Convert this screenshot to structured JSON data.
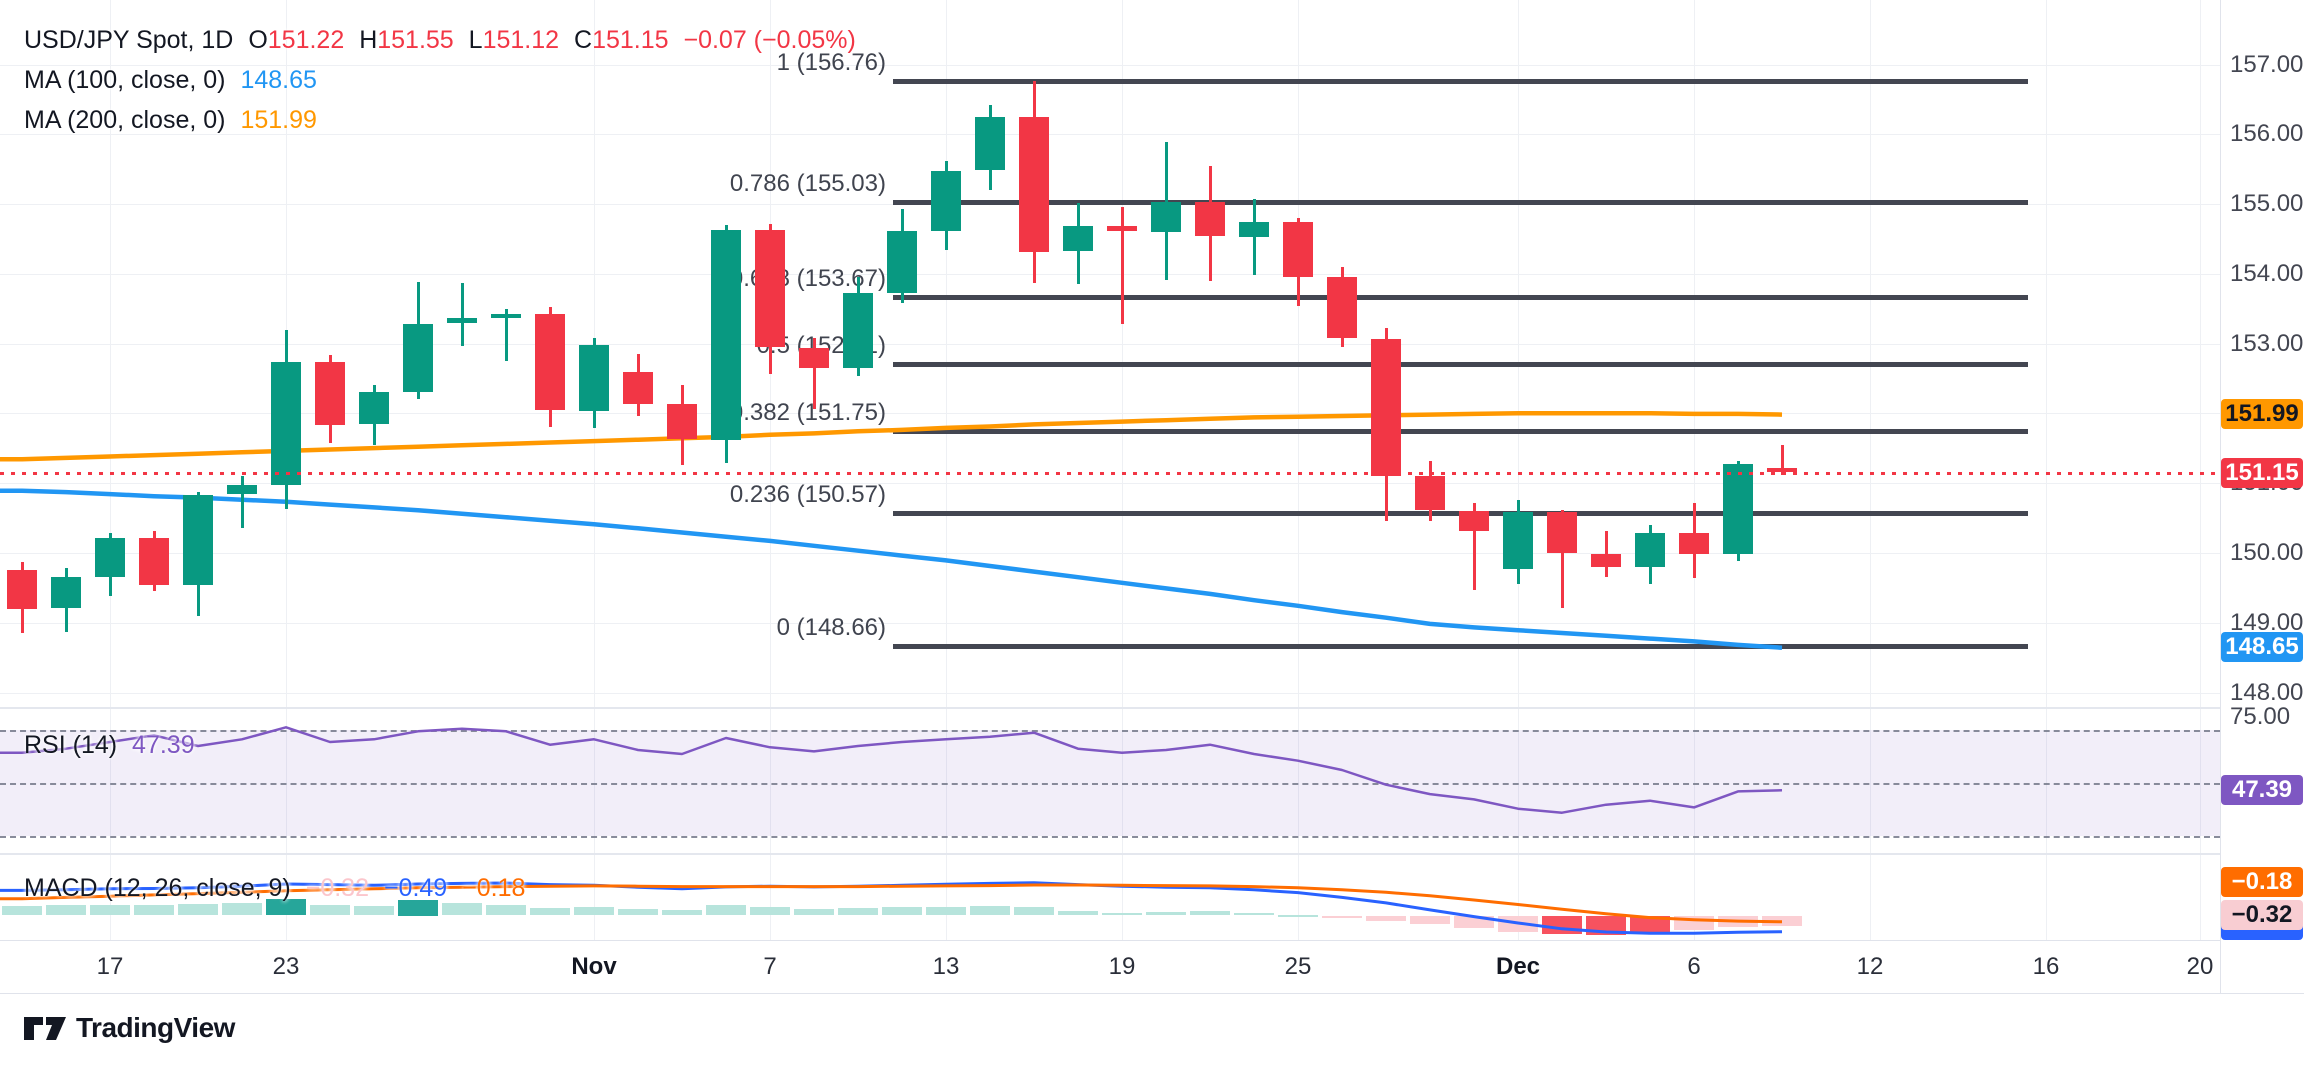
{
  "header": {
    "symbol": "USD/JPY Spot, 1D",
    "o_label": "O",
    "o": "151.22",
    "h_label": "H",
    "h": "151.55",
    "l_label": "L",
    "l": "151.12",
    "c_label": "C",
    "c": "151.15",
    "change": "−0.07 (−0.05%)"
  },
  "ma100": {
    "label": "MA (100, close, 0)",
    "value": "148.65",
    "color": "#2196F3"
  },
  "ma200": {
    "label": "MA (200, close, 0)",
    "value": "151.99",
    "color": "#FF9800"
  },
  "rsi_legend": {
    "label": "RSI (14)",
    "value": "47.39",
    "color": "#7E57C2",
    "axis_label": "75.00"
  },
  "macd_legend": {
    "label": "MACD (12, 26, close, 9)",
    "hist_value": "−0.32",
    "macd_value": "−0.49",
    "signal_value": "−0.18",
    "hist_color": "#FBC6CC",
    "macd_color": "#2962FF",
    "signal_color": "#FF6D00"
  },
  "price_axis_ticks": [
    "157.00",
    "156.00",
    "155.00",
    "154.00",
    "153.00",
    "152.00",
    "151.00",
    "150.00",
    "149.00",
    "148.00"
  ],
  "badges": [
    {
      "name": "ma200-badge",
      "text": "151.99",
      "bg": "#FF9800",
      "fg": "#131722"
    },
    {
      "name": "last-price-badge",
      "text": "151.15",
      "bg": "#F23645",
      "fg": "#ffffff"
    },
    {
      "name": "ma100-badge",
      "text": "148.65",
      "bg": "#2196F3",
      "fg": "#ffffff"
    },
    {
      "name": "rsi-badge",
      "text": "47.39",
      "bg": "#7E57C2",
      "fg": "#ffffff"
    },
    {
      "name": "macd-signal-badge",
      "text": "−0.18",
      "bg": "#FF6D00",
      "fg": "#ffffff"
    },
    {
      "name": "macd-hist-badge",
      "text": "−0.32",
      "bg": "#F8CDD2",
      "fg": "#131722"
    }
  ],
  "x_axis_labels": [
    "17",
    "23",
    "Nov",
    "7",
    "13",
    "19",
    "25",
    "Dec",
    "6",
    "12",
    "16",
    "20"
  ],
  "footer": {
    "brand": "TradingView"
  },
  "chart_data": {
    "type": "candlestick",
    "title": "USD/JPY Spot, 1D",
    "up_color": "#089981",
    "down_color": "#F23645",
    "last_price": 151.15,
    "price_axis_range": [
      148.0,
      157.0
    ],
    "fib_levels": [
      {
        "label": "1 (156.76)",
        "price": 156.76
      },
      {
        "label": "0.786 (155.03)",
        "price": 155.03
      },
      {
        "label": "0.618 (153.67)",
        "price": 153.67
      },
      {
        "label": "0.5 (152.71)",
        "price": 152.71
      },
      {
        "label": "0.382 (151.75)",
        "price": 151.75
      },
      {
        "label": "0.236 (150.57)",
        "price": 150.57
      },
      {
        "label": "0 (148.66)",
        "price": 148.66
      }
    ],
    "candles_ohlc": [
      [
        149.76,
        149.87,
        148.84,
        149.2
      ],
      [
        149.2,
        149.79,
        148.86,
        149.65
      ],
      [
        149.65,
        150.29,
        149.38,
        150.21
      ],
      [
        150.21,
        150.31,
        149.44,
        149.53
      ],
      [
        149.53,
        150.88,
        149.09,
        150.83
      ],
      [
        150.83,
        151.1,
        150.35,
        150.97
      ],
      [
        150.97,
        153.19,
        150.62,
        152.74
      ],
      [
        152.74,
        152.83,
        151.56,
        151.83
      ],
      [
        151.83,
        152.4,
        151.53,
        152.3
      ],
      [
        152.3,
        153.88,
        152.19,
        153.28
      ],
      [
        153.28,
        153.87,
        152.96,
        153.36
      ],
      [
        153.36,
        153.5,
        152.75,
        153.42
      ],
      [
        153.42,
        153.52,
        151.8,
        152.03
      ],
      [
        152.03,
        153.08,
        151.78,
        152.98
      ],
      [
        152.6,
        152.85,
        151.95,
        152.13
      ],
      [
        152.13,
        152.4,
        151.25,
        151.62
      ],
      [
        151.62,
        154.7,
        151.28,
        154.63
      ],
      [
        154.63,
        154.71,
        152.56,
        152.94
      ],
      [
        152.94,
        153.08,
        152.05,
        152.64
      ],
      [
        152.64,
        153.96,
        152.54,
        153.72
      ],
      [
        153.72,
        154.93,
        153.58,
        154.62
      ],
      [
        154.62,
        155.62,
        154.34,
        155.48
      ],
      [
        155.48,
        156.42,
        155.2,
        156.25
      ],
      [
        156.25,
        156.76,
        153.86,
        154.31
      ],
      [
        154.31,
        155.02,
        153.85,
        154.68
      ],
      [
        154.68,
        154.96,
        153.28,
        154.6
      ],
      [
        154.6,
        155.89,
        153.91,
        155.03
      ],
      [
        155.03,
        155.55,
        153.9,
        154.53
      ],
      [
        154.53,
        155.07,
        153.97,
        154.75
      ],
      [
        154.75,
        154.8,
        153.53,
        153.95
      ],
      [
        153.95,
        154.1,
        152.95,
        153.07
      ],
      [
        153.07,
        153.23,
        150.46,
        151.1
      ],
      [
        151.1,
        151.32,
        150.45,
        150.6
      ],
      [
        150.6,
        150.72,
        149.47,
        150.3
      ],
      [
        149.75,
        150.76,
        149.55,
        150.58
      ],
      [
        150.58,
        150.62,
        149.21,
        149.98
      ],
      [
        149.98,
        150.32,
        149.66,
        149.78
      ],
      [
        149.78,
        150.4,
        149.55,
        150.28
      ],
      [
        150.28,
        150.71,
        149.63,
        149.97
      ],
      [
        149.97,
        151.32,
        149.88,
        151.27
      ],
      [
        151.22,
        151.55,
        151.12,
        151.15
      ]
    ],
    "ma100_series": [
      150.9,
      150.88,
      150.85,
      150.82,
      150.8,
      150.77,
      150.74,
      150.7,
      150.66,
      150.62,
      150.57,
      150.52,
      150.47,
      150.42,
      150.36,
      150.3,
      150.24,
      150.18,
      150.11,
      150.04,
      149.97,
      149.9,
      149.82,
      149.74,
      149.66,
      149.58,
      149.5,
      149.42,
      149.33,
      149.25,
      149.16,
      149.08,
      148.99,
      148.94,
      148.9,
      148.86,
      148.82,
      148.78,
      148.74,
      148.69,
      148.65
    ],
    "ma200_series": [
      151.35,
      151.37,
      151.39,
      151.41,
      151.43,
      151.45,
      151.47,
      151.49,
      151.51,
      151.53,
      151.55,
      151.57,
      151.59,
      151.61,
      151.63,
      151.65,
      151.67,
      151.7,
      151.72,
      151.75,
      151.77,
      151.8,
      151.82,
      151.85,
      151.87,
      151.89,
      151.91,
      151.93,
      151.95,
      151.96,
      151.97,
      151.98,
      151.99,
      152.0,
      152.01,
      152.01,
      152.01,
      152.01,
      152.0,
      152.0,
      151.99
    ],
    "rsi": {
      "period": 14,
      "last_value": 47.39,
      "upper_band": 70,
      "middle": 50,
      "lower_band": 30,
      "series": [
        61.5,
        63,
        65.5,
        68,
        64,
        66.5,
        71,
        65.5,
        66.5,
        69.5,
        70.5,
        69.5,
        64.5,
        66.5,
        62.5,
        61,
        67,
        63.5,
        62,
        64,
        65.5,
        66.5,
        67.5,
        69,
        63,
        61.5,
        62.5,
        64.5,
        61,
        58.5,
        55,
        49.5,
        46,
        44,
        40.5,
        39,
        42,
        43.5,
        41,
        47,
        47.39
      ]
    },
    "macd": {
      "params": [
        12,
        26,
        9
      ],
      "last_macd": -0.49,
      "last_signal": -0.18,
      "last_hist": -0.32,
      "macd_series": [
        0.8,
        0.82,
        0.85,
        0.86,
        0.88,
        0.93,
        1.0,
        0.98,
        0.96,
        1.0,
        1.02,
        1.03,
        0.98,
        0.96,
        0.9,
        0.85,
        0.91,
        0.93,
        0.91,
        0.93,
        0.96,
        0.99,
        1.02,
        1.04,
        0.98,
        0.93,
        0.9,
        0.88,
        0.82,
        0.73,
        0.58,
        0.41,
        0.19,
        -0.02,
        -0.22,
        -0.4,
        -0.5,
        -0.54,
        -0.54,
        -0.51,
        -0.49
      ],
      "signal_series": [
        0.54,
        0.58,
        0.62,
        0.66,
        0.7,
        0.74,
        0.79,
        0.82,
        0.85,
        0.88,
        0.9,
        0.92,
        0.93,
        0.94,
        0.93,
        0.92,
        0.92,
        0.92,
        0.92,
        0.92,
        0.93,
        0.94,
        0.95,
        0.97,
        0.97,
        0.96,
        0.95,
        0.94,
        0.92,
        0.88,
        0.82,
        0.74,
        0.63,
        0.5,
        0.36,
        0.21,
        0.07,
        -0.05,
        -0.12,
        -0.16,
        -0.18
      ],
      "hist_series": [
        0.3,
        0.32,
        0.34,
        0.32,
        0.36,
        0.4,
        0.52,
        0.34,
        0.3,
        0.5,
        0.38,
        0.33,
        0.24,
        0.26,
        0.2,
        0.16,
        0.32,
        0.26,
        0.2,
        0.23,
        0.26,
        0.28,
        0.3,
        0.28,
        0.14,
        0.09,
        0.11,
        0.13,
        0.07,
        0.02,
        -0.08,
        -0.16,
        -0.26,
        -0.38,
        -0.5,
        -0.58,
        -0.6,
        -0.52,
        -0.44,
        -0.36,
        -0.32
      ],
      "hist_colors": [
        "lg",
        "lg",
        "lg",
        "lg",
        "lg",
        "lg",
        "dg",
        "lg",
        "lg",
        "dg",
        "lg",
        "lg",
        "lg",
        "lg",
        "lg",
        "lg",
        "lg",
        "lg",
        "lg",
        "lg",
        "lg",
        "lg",
        "lg",
        "lg",
        "lg",
        "lg",
        "lg",
        "lg",
        "lg",
        "lg",
        "lp",
        "lp",
        "lp",
        "lp",
        "lp",
        "dr",
        "dr",
        "dr",
        "lp",
        "lp",
        "lp"
      ],
      "hist_palette": {
        "lg": "#B7E4DC",
        "dg": "#26A69A",
        "lp": "#FBCFD4",
        "dr": "#F7525F"
      }
    }
  }
}
